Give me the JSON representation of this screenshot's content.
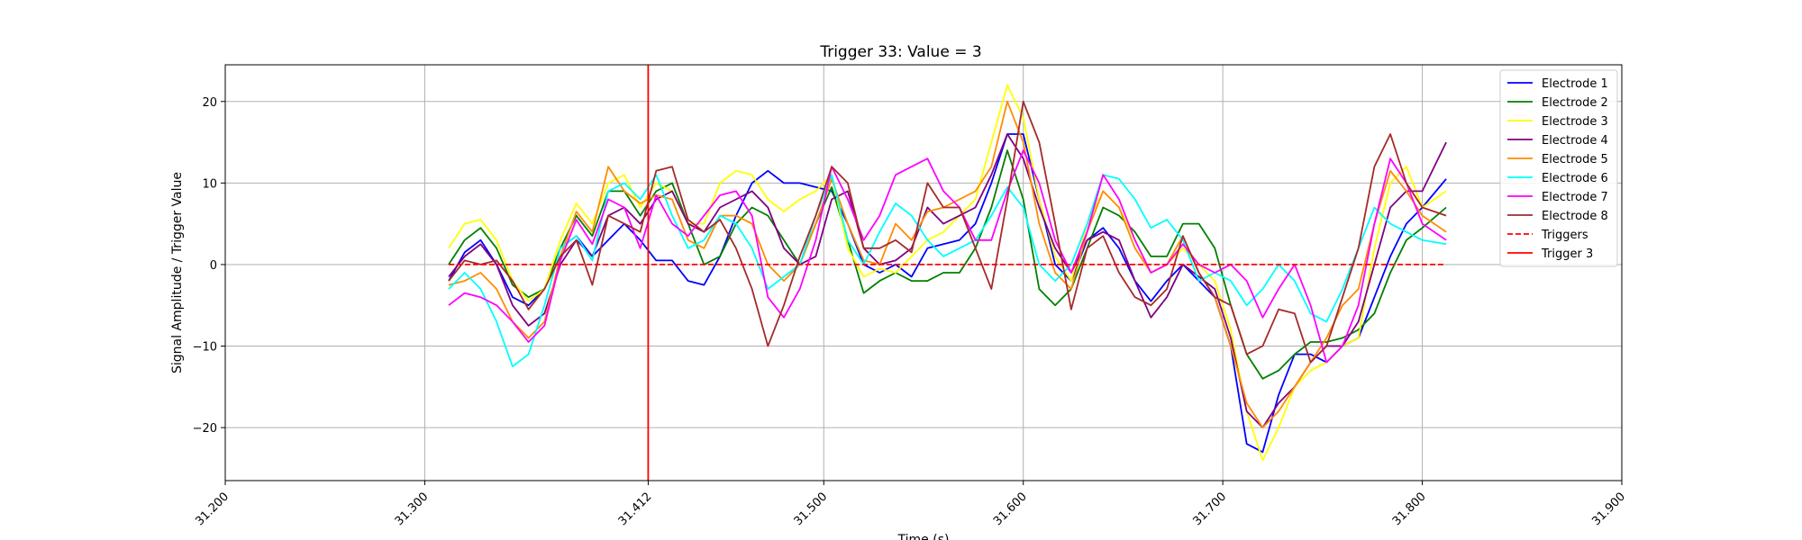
{
  "chart_data": {
    "type": "line",
    "title": "Trigger 33: Value = 3",
    "xlabel": "Time (s)",
    "ylabel": "Signal Amplitude / Trigger Value",
    "xlim": [
      31.2,
      31.9
    ],
    "ylim": [
      -26.5,
      24.5
    ],
    "x_ticks": [
      31.2,
      31.3,
      31.412,
      31.5,
      31.6,
      31.7,
      31.8,
      31.9
    ],
    "x_tick_labels": [
      "31.200",
      "31.300",
      "31.412",
      "31.500",
      "31.600",
      "31.700",
      "31.800",
      "31.900"
    ],
    "y_ticks": [
      -20,
      -10,
      0,
      10,
      20
    ],
    "y_tick_labels": [
      "−20",
      "−10",
      "0",
      "10",
      "20"
    ],
    "grid": true,
    "legend_position": "top-right",
    "series": [
      {
        "name": "Electrode 1",
        "color": "#0000ff",
        "style": "solid",
        "x": [
          31.312,
          31.32,
          31.328,
          31.336,
          31.344,
          31.352,
          31.36,
          31.368,
          31.376,
          31.384,
          31.392,
          31.4,
          31.408,
          31.416,
          31.424,
          31.432,
          31.44,
          31.448,
          31.456,
          31.464,
          31.472,
          31.48,
          31.488,
          31.496,
          31.504,
          31.512,
          31.52,
          31.528,
          31.536,
          31.544,
          31.552,
          31.56,
          31.568,
          31.576,
          31.584,
          31.592,
          31.6,
          31.608,
          31.616,
          31.624,
          31.632,
          31.64,
          31.648,
          31.656,
          31.664,
          31.672,
          31.68,
          31.688,
          31.696,
          31.704,
          31.712,
          31.72,
          31.728,
          31.736,
          31.744,
          31.752,
          31.76,
          31.768,
          31.776,
          31.784,
          31.792,
          31.8,
          31.812
        ],
        "y": [
          -2,
          1.5,
          3,
          0,
          -4,
          -5,
          -3,
          2,
          3.5,
          1,
          3,
          5,
          3,
          0.5,
          0.5,
          -2,
          -2.5,
          1,
          6,
          10,
          11.5,
          10,
          10,
          9.5,
          9,
          5,
          0,
          -1,
          0,
          -1.5,
          2,
          2.5,
          3,
          5,
          10,
          16,
          16,
          8,
          0,
          -2,
          3,
          4.5,
          2,
          -2,
          -4.5,
          -2,
          0,
          -2,
          -4,
          -10,
          -22,
          -23,
          -16,
          -11,
          -11,
          -12,
          -10,
          -9,
          -4,
          1,
          5,
          7,
          10.5
        ]
      },
      {
        "name": "Electrode 2",
        "color": "#008000",
        "style": "solid",
        "x": [
          31.312,
          31.32,
          31.328,
          31.336,
          31.344,
          31.352,
          31.36,
          31.368,
          31.376,
          31.384,
          31.392,
          31.4,
          31.408,
          31.416,
          31.424,
          31.432,
          31.44,
          31.448,
          31.456,
          31.464,
          31.472,
          31.48,
          31.488,
          31.496,
          31.504,
          31.512,
          31.52,
          31.528,
          31.536,
          31.544,
          31.552,
          31.56,
          31.568,
          31.576,
          31.584,
          31.592,
          31.6,
          31.608,
          31.616,
          31.624,
          31.632,
          31.64,
          31.648,
          31.656,
          31.664,
          31.672,
          31.68,
          31.688,
          31.696,
          31.704,
          31.712,
          31.72,
          31.728,
          31.736,
          31.744,
          31.752,
          31.76,
          31.768,
          31.776,
          31.784,
          31.792,
          31.8,
          31.812
        ],
        "y": [
          0,
          3,
          4.5,
          2,
          -2.5,
          -4,
          -3,
          2,
          6,
          3.5,
          9,
          9,
          6,
          9,
          10,
          5,
          0,
          1,
          5,
          7,
          6,
          3,
          0,
          5,
          9.5,
          3,
          -3.5,
          -2,
          -1,
          -2,
          -2,
          -1,
          -1,
          2,
          7,
          14,
          8,
          -3,
          -5,
          -3,
          2,
          7,
          6,
          4,
          1,
          1,
          5,
          5,
          2,
          -5,
          -11,
          -14,
          -13,
          -11,
          -9.5,
          -9.5,
          -9,
          -8,
          -6,
          -1,
          3,
          4.5,
          7
        ]
      },
      {
        "name": "Electrode 3",
        "color": "#ffff00",
        "style": "solid",
        "x": [
          31.312,
          31.32,
          31.328,
          31.336,
          31.344,
          31.352,
          31.36,
          31.368,
          31.376,
          31.384,
          31.392,
          31.4,
          31.408,
          31.416,
          31.424,
          31.432,
          31.44,
          31.448,
          31.456,
          31.464,
          31.472,
          31.48,
          31.488,
          31.496,
          31.504,
          31.512,
          31.52,
          31.528,
          31.536,
          31.544,
          31.552,
          31.56,
          31.568,
          31.576,
          31.584,
          31.592,
          31.6,
          31.608,
          31.616,
          31.624,
          31.632,
          31.64,
          31.648,
          31.656,
          31.664,
          31.672,
          31.68,
          31.688,
          31.696,
          31.704,
          31.712,
          31.72,
          31.728,
          31.736,
          31.744,
          31.752,
          31.76,
          31.768,
          31.776,
          31.784,
          31.792,
          31.8,
          31.812
        ],
        "y": [
          2,
          5,
          5.5,
          3,
          -2,
          -4.5,
          -3,
          3,
          7.5,
          5,
          10,
          11,
          7,
          10,
          9,
          5,
          5,
          10,
          11.5,
          11,
          8,
          6.5,
          8,
          9,
          11,
          2,
          -1.5,
          -0.5,
          -1,
          1,
          3,
          4,
          6,
          8,
          15,
          22,
          18,
          8,
          1,
          -2,
          5,
          9,
          7,
          3,
          -1,
          0,
          2,
          0,
          -2,
          -8,
          -18,
          -24,
          -20,
          -15,
          -13,
          -12,
          -10,
          -9,
          2,
          10,
          12,
          7,
          9
        ]
      },
      {
        "name": "Electrode 4",
        "color": "#800080",
        "style": "solid",
        "x": [
          31.312,
          31.32,
          31.328,
          31.336,
          31.344,
          31.352,
          31.36,
          31.368,
          31.376,
          31.384,
          31.392,
          31.4,
          31.408,
          31.416,
          31.424,
          31.432,
          31.44,
          31.448,
          31.456,
          31.464,
          31.472,
          31.48,
          31.488,
          31.496,
          31.504,
          31.512,
          31.52,
          31.528,
          31.536,
          31.544,
          31.552,
          31.56,
          31.568,
          31.576,
          31.584,
          31.592,
          31.6,
          31.608,
          31.616,
          31.624,
          31.632,
          31.64,
          31.648,
          31.656,
          31.664,
          31.672,
          31.68,
          31.688,
          31.696,
          31.704,
          31.712,
          31.72,
          31.728,
          31.736,
          31.744,
          31.752,
          31.76,
          31.768,
          31.776,
          31.784,
          31.792,
          31.8,
          31.812
        ],
        "y": [
          -1.5,
          1,
          2.5,
          0,
          -5,
          -7.5,
          -6,
          0,
          3,
          1,
          6,
          7,
          5,
          8,
          9,
          5,
          4,
          7,
          8,
          9,
          7,
          2,
          0,
          1,
          8,
          9,
          2,
          0,
          0.5,
          2,
          7,
          5,
          6,
          7,
          11,
          16,
          13,
          7,
          2,
          -1,
          3,
          4,
          3,
          -2,
          -6.5,
          -4,
          0,
          -1.5,
          -3,
          -9,
          -18,
          -20,
          -17,
          -15,
          -12,
          -10,
          -10,
          -7,
          0,
          7,
          9,
          9,
          15
        ]
      },
      {
        "name": "Electrode 5",
        "color": "#ff8c00",
        "style": "solid",
        "x": [
          31.312,
          31.32,
          31.328,
          31.336,
          31.344,
          31.352,
          31.36,
          31.368,
          31.376,
          31.384,
          31.392,
          31.4,
          31.408,
          31.416,
          31.424,
          31.432,
          31.44,
          31.448,
          31.456,
          31.464,
          31.472,
          31.48,
          31.488,
          31.496,
          31.504,
          31.512,
          31.52,
          31.528,
          31.536,
          31.544,
          31.552,
          31.56,
          31.568,
          31.576,
          31.584,
          31.592,
          31.6,
          31.608,
          31.616,
          31.624,
          31.632,
          31.64,
          31.648,
          31.656,
          31.664,
          31.672,
          31.68,
          31.688,
          31.696,
          31.704,
          31.712,
          31.72,
          31.728,
          31.736,
          31.744,
          31.752,
          31.76,
          31.768,
          31.776,
          31.784,
          31.792,
          31.8,
          31.812
        ],
        "y": [
          -2.5,
          -2,
          -1,
          -3,
          -7,
          -9,
          -7,
          1,
          6.5,
          4,
          12,
          9,
          7.5,
          8.5,
          8,
          3,
          2,
          6,
          6,
          5,
          0,
          -2,
          0,
          5,
          10.5,
          5,
          0.5,
          0,
          5,
          3,
          6.5,
          7,
          8,
          9,
          12,
          20,
          15,
          5,
          -1,
          -3,
          4,
          9,
          7,
          2,
          -1,
          0,
          3.5,
          -1,
          -4,
          -10,
          -17,
          -20,
          -18,
          -15,
          -12,
          -9,
          -5,
          -3,
          5,
          11.5,
          9,
          6,
          4
        ]
      },
      {
        "name": "Electrode 6",
        "color": "#00ffff",
        "style": "solid",
        "x": [
          31.312,
          31.32,
          31.328,
          31.336,
          31.344,
          31.352,
          31.36,
          31.368,
          31.376,
          31.384,
          31.392,
          31.4,
          31.408,
          31.416,
          31.424,
          31.432,
          31.44,
          31.448,
          31.456,
          31.464,
          31.472,
          31.48,
          31.488,
          31.496,
          31.504,
          31.512,
          31.52,
          31.528,
          31.536,
          31.544,
          31.552,
          31.56,
          31.568,
          31.576,
          31.584,
          31.592,
          31.6,
          31.608,
          31.616,
          31.624,
          31.632,
          31.64,
          31.648,
          31.656,
          31.664,
          31.672,
          31.68,
          31.688,
          31.696,
          31.704,
          31.712,
          31.72,
          31.728,
          31.736,
          31.744,
          31.752,
          31.76,
          31.768,
          31.776,
          31.784,
          31.792,
          31.8,
          31.812
        ],
        "y": [
          -3,
          -1,
          -3,
          -7,
          -12.5,
          -11,
          -5,
          2,
          3.5,
          0.5,
          9,
          10,
          8,
          11,
          6,
          2,
          3,
          6,
          5,
          2,
          -3,
          -1.5,
          0,
          6,
          11,
          3,
          0,
          4,
          7.5,
          6,
          3,
          1,
          2,
          3,
          6,
          9.5,
          7,
          0,
          -2,
          0,
          5,
          11,
          10.5,
          8,
          4.5,
          5.5,
          3,
          -2,
          -1,
          -2,
          -5,
          -3,
          0,
          -2,
          -6,
          -7,
          -3,
          2,
          7,
          5,
          4,
          3,
          2.5
        ]
      },
      {
        "name": "Electrode 7",
        "color": "#ff00ff",
        "style": "solid",
        "x": [
          31.312,
          31.32,
          31.328,
          31.336,
          31.344,
          31.352,
          31.36,
          31.368,
          31.376,
          31.384,
          31.392,
          31.4,
          31.408,
          31.416,
          31.424,
          31.432,
          31.44,
          31.448,
          31.456,
          31.464,
          31.472,
          31.48,
          31.488,
          31.496,
          31.504,
          31.512,
          31.52,
          31.528,
          31.536,
          31.544,
          31.552,
          31.56,
          31.568,
          31.576,
          31.584,
          31.592,
          31.6,
          31.608,
          31.616,
          31.624,
          31.632,
          31.64,
          31.648,
          31.656,
          31.664,
          31.672,
          31.68,
          31.688,
          31.696,
          31.704,
          31.712,
          31.72,
          31.728,
          31.736,
          31.744,
          31.752,
          31.76,
          31.768,
          31.776,
          31.784,
          31.792,
          31.8,
          31.812
        ],
        "y": [
          -5,
          -3.5,
          -4,
          -5,
          -7,
          -9.5,
          -7.5,
          0.5,
          5.5,
          2.5,
          8,
          7,
          2,
          8.5,
          5,
          3.5,
          6,
          8.5,
          9,
          6,
          -4,
          -6.5,
          -3,
          3,
          12,
          8,
          3,
          6,
          11,
          12,
          13,
          9,
          7,
          3,
          3,
          9,
          14,
          10,
          3,
          -1,
          4,
          11,
          8,
          3,
          -1,
          0,
          2.5,
          0,
          -1,
          0,
          -2,
          -6.5,
          -3,
          0,
          -5,
          -12,
          -10,
          -5,
          5,
          13,
          10,
          5,
          3
        ]
      },
      {
        "name": "Electrode 8",
        "color": "#a52a2a",
        "style": "solid",
        "x": [
          31.312,
          31.32,
          31.328,
          31.336,
          31.344,
          31.352,
          31.36,
          31.368,
          31.376,
          31.384,
          31.392,
          31.4,
          31.408,
          31.416,
          31.424,
          31.432,
          31.44,
          31.448,
          31.456,
          31.464,
          31.472,
          31.48,
          31.488,
          31.496,
          31.504,
          31.512,
          31.52,
          31.528,
          31.536,
          31.544,
          31.552,
          31.56,
          31.568,
          31.576,
          31.584,
          31.592,
          31.6,
          31.608,
          31.616,
          31.624,
          31.632,
          31.64,
          31.648,
          31.656,
          31.664,
          31.672,
          31.68,
          31.688,
          31.696,
          31.704,
          31.712,
          31.72,
          31.728,
          31.736,
          31.744,
          31.752,
          31.76,
          31.768,
          31.776,
          31.784,
          31.792,
          31.8,
          31.812
        ],
        "y": [
          -2,
          0.5,
          0,
          0.5,
          -2,
          -5.5,
          -3,
          1,
          3,
          -2.5,
          6,
          5,
          4,
          11.5,
          12,
          5.5,
          4,
          5.5,
          2,
          -3,
          -10,
          -5,
          1,
          6,
          12,
          10,
          2,
          2,
          3,
          1.5,
          10,
          7,
          7,
          2,
          -3,
          8,
          20,
          15,
          5,
          -5.5,
          2,
          3.5,
          -1,
          -4,
          -5,
          -3,
          3.5,
          -1,
          -4,
          -5,
          -11,
          -10,
          -5.5,
          -6,
          -12,
          -10,
          -4,
          2,
          12,
          16,
          10,
          7,
          6
        ]
      },
      {
        "name": "Triggers",
        "color": "#ff0000",
        "style": "dashed",
        "x": [
          31.312,
          31.812
        ],
        "y": [
          0,
          0
        ]
      },
      {
        "name": "Trigger 3",
        "color": "#ff0000",
        "style": "vertical",
        "x": [
          31.412,
          31.412
        ],
        "y": [
          -26.5,
          24.5
        ]
      }
    ]
  }
}
